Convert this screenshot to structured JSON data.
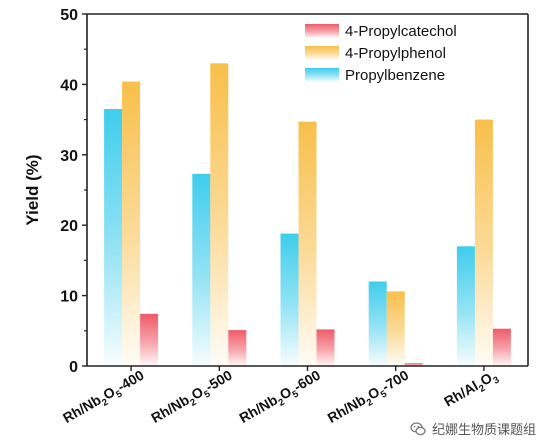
{
  "chart_data": {
    "type": "bar",
    "ylabel": "Yield (%)",
    "ylim": [
      0,
      50
    ],
    "yticks": [
      0,
      10,
      20,
      30,
      40,
      50
    ],
    "grid": false,
    "legend_position": "top-right",
    "categories": [
      {
        "parts": [
          [
            "Rh/Nb",
            false
          ],
          [
            "2",
            true
          ],
          [
            "O",
            false
          ],
          [
            "5",
            true
          ],
          [
            "-400",
            false
          ]
        ]
      },
      {
        "parts": [
          [
            "Rh/Nb",
            false
          ],
          [
            "2",
            true
          ],
          [
            "O",
            false
          ],
          [
            "5",
            true
          ],
          [
            "-500",
            false
          ]
        ]
      },
      {
        "parts": [
          [
            "Rh/Nb",
            false
          ],
          [
            "2",
            true
          ],
          [
            "O",
            false
          ],
          [
            "5",
            true
          ],
          [
            "-600",
            false
          ]
        ]
      },
      {
        "parts": [
          [
            "Rh/Nb",
            false
          ],
          [
            "2",
            true
          ],
          [
            "O",
            false
          ],
          [
            "5",
            true
          ],
          [
            "-700",
            false
          ]
        ]
      },
      {
        "parts": [
          [
            "Rh/Al",
            false
          ],
          [
            "2",
            true
          ],
          [
            "O",
            false
          ],
          [
            "3",
            true
          ]
        ]
      }
    ],
    "series": [
      {
        "name": "Propylbenzene",
        "color": "#3fcdec",
        "values": [
          36.5,
          27.3,
          18.8,
          12.0,
          17.0
        ]
      },
      {
        "name": "4-Propylphenol",
        "color": "#f8bf4a",
        "values": [
          40.4,
          43.0,
          34.7,
          10.6,
          35.0
        ]
      },
      {
        "name": "4-Propylcatechol",
        "color": "#ef5b68",
        "values": [
          7.4,
          5.1,
          5.2,
          0.4,
          5.3
        ]
      }
    ],
    "legend_order": [
      "4-Propylcatechol",
      "4-Propylphenol",
      "Propylbenzene"
    ]
  },
  "watermark": {
    "text": "纪娜生物质课题组",
    "icon": "wechat-icon"
  }
}
